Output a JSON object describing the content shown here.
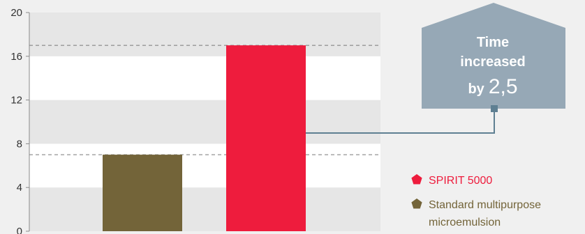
{
  "chart_data": {
    "type": "bar",
    "categories": [
      "Standard multipurpose microemulsion",
      "SPIRIT 5000"
    ],
    "values": [
      7,
      17
    ],
    "ylim": [
      0,
      20
    ],
    "yticks": [
      "0",
      "4",
      "8",
      "12",
      "16",
      "20"
    ],
    "grid": "alternating horizontal bands",
    "reference_lines": [
      7,
      17
    ],
    "legend_placement": "bottom-right",
    "legend": [
      {
        "label": "SPIRIT 5000",
        "color": "#ee1c3d"
      },
      {
        "label": "Standard multipurpose microemulsion",
        "label_lines": [
          "Standard multipurpose",
          "microemulsion"
        ],
        "color": "#736439"
      }
    ],
    "annotation": {
      "lines": [
        "Time",
        "increased",
        "by"
      ],
      "value": "2,5",
      "color": "#96a8b6"
    }
  },
  "colors": {
    "spirit": "#ee1c3d",
    "standard": "#736439",
    "callout": "#96a8b6",
    "connector": "#5e7f92",
    "band_dark": "#e6e6e6",
    "band_light": "#ffffff"
  }
}
